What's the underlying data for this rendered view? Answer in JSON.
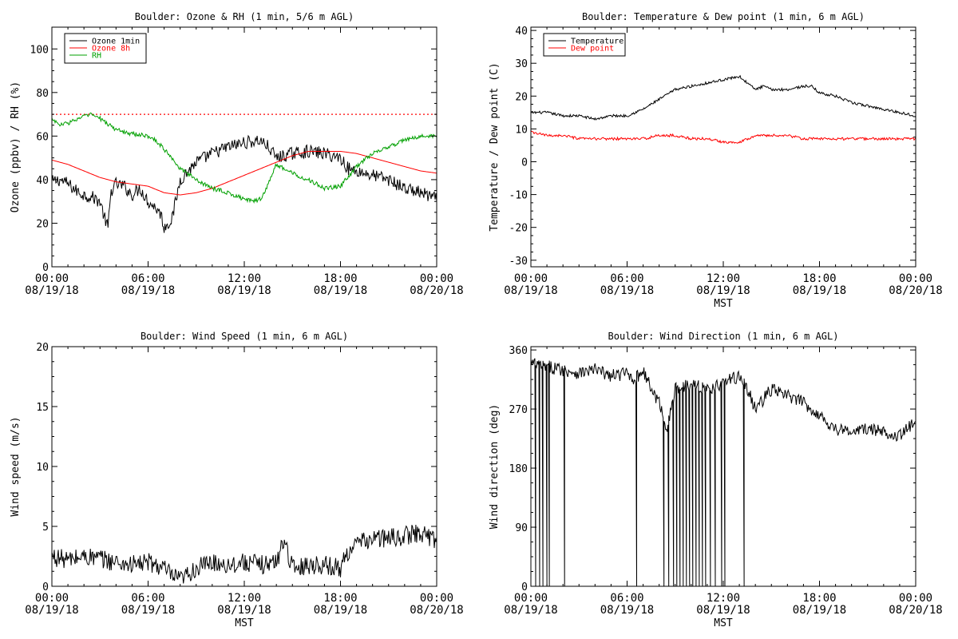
{
  "chart_data": [
    {
      "type": "line",
      "title": "Boulder: Ozone & RH (1 min, 5/6 m AGL)",
      "xlabel": "",
      "ylabel": "Ozone (ppbv) / RH (%)",
      "ylim": [
        0,
        110
      ],
      "yticks": [
        0,
        20,
        40,
        60,
        80,
        100
      ],
      "xlim": [
        0,
        24
      ],
      "xticks": [
        0,
        6,
        12,
        18,
        24
      ],
      "xtick_labels": [
        [
          "00:00",
          "08/19/18"
        ],
        [
          "06:00",
          "08/19/18"
        ],
        [
          "12:00",
          "08/19/18"
        ],
        [
          "18:00",
          "08/19/18"
        ],
        [
          "00:00",
          "08/20/18"
        ]
      ],
      "grid": false,
      "legend": "top-left",
      "reference_line": {
        "y": 70,
        "color": "#ff0000",
        "style": "dotted"
      },
      "series": [
        {
          "name": "Ozone 1min",
          "color": "#000000",
          "noise": 3,
          "x": [
            0,
            0.5,
            1,
            1.5,
            2,
            2.5,
            3,
            3.3,
            3.5,
            3.7,
            4,
            4.5,
            5,
            5.5,
            6,
            6.5,
            6.8,
            7,
            7.5,
            8,
            9,
            10,
            11,
            12,
            13,
            13.5,
            14,
            15,
            16,
            17,
            18,
            18.5,
            19,
            20,
            21,
            22,
            23,
            24
          ],
          "y": [
            39,
            40,
            38,
            35,
            33,
            32,
            30,
            22,
            18,
            35,
            38,
            37,
            33,
            36,
            30,
            27,
            24,
            18,
            22,
            40,
            48,
            52,
            55,
            57,
            58,
            55,
            50,
            52,
            53,
            52,
            50,
            45,
            44,
            42,
            40,
            36,
            34,
            31
          ]
        },
        {
          "name": "Ozone 8h",
          "color": "#ff0000",
          "noise": 0,
          "x": [
            0,
            1,
            2,
            3,
            4,
            5,
            6,
            7,
            8,
            9,
            10,
            11,
            12,
            13,
            14,
            15,
            16,
            17,
            18,
            19,
            20,
            21,
            22,
            23,
            24
          ],
          "y": [
            49,
            47,
            44,
            41,
            39,
            38,
            37,
            34,
            33,
            34,
            36,
            39,
            42,
            45,
            48,
            51,
            53,
            53,
            53,
            52,
            50,
            48,
            46,
            44,
            43
          ]
        },
        {
          "name": "RH",
          "color": "#00a000",
          "noise": 1,
          "x": [
            0,
            0.5,
            1,
            2,
            2.5,
            3,
            4,
            5,
            6,
            6.5,
            7,
            7.5,
            8,
            9,
            10,
            11,
            12,
            12.5,
            13,
            13.5,
            14,
            15,
            16,
            17,
            18,
            19,
            20,
            21,
            22,
            23,
            24
          ],
          "y": [
            68,
            65,
            66,
            69,
            70,
            68,
            63,
            61,
            60,
            58,
            54,
            50,
            45,
            40,
            36,
            34,
            31,
            30,
            31,
            38,
            47,
            43,
            40,
            36,
            37,
            46,
            52,
            55,
            58,
            60,
            60
          ]
        }
      ]
    },
    {
      "type": "line",
      "title": "Boulder: Temperature & Dew point (1 min, 6 m AGL)",
      "xlabel": "MST",
      "ylabel": "Temperature / Dew point (C)",
      "ylim": [
        -32,
        41
      ],
      "yticks": [
        -30,
        -20,
        -10,
        0,
        10,
        20,
        30,
        40
      ],
      "xlim": [
        0,
        24
      ],
      "xticks": [
        0,
        6,
        12,
        18,
        24
      ],
      "xtick_labels": [
        [
          "00:00",
          "08/19/18"
        ],
        [
          "06:00",
          "08/19/18"
        ],
        [
          "12:00",
          "08/19/18"
        ],
        [
          "18:00",
          "08/19/18"
        ],
        [
          "00:00",
          "08/20/18"
        ]
      ],
      "grid": false,
      "legend": "top-left",
      "series": [
        {
          "name": "Temperature",
          "color": "#000000",
          "noise": 0.4,
          "x": [
            0,
            1,
            2,
            3,
            4,
            5,
            6,
            7,
            8,
            9,
            10,
            11,
            12,
            13,
            13.5,
            14,
            14.5,
            15,
            16,
            17,
            17.5,
            18,
            19,
            20,
            21,
            22,
            23,
            24
          ],
          "y": [
            15,
            15,
            14,
            14,
            13,
            14,
            14,
            16,
            19,
            22,
            23,
            24,
            25,
            26,
            24,
            22,
            23,
            22,
            22,
            23,
            23,
            21,
            20,
            18,
            17,
            16,
            15,
            14
          ]
        },
        {
          "name": "Dew point",
          "color": "#ff0000",
          "noise": 0.4,
          "x": [
            0,
            1,
            2,
            3,
            4,
            5,
            6,
            7,
            8,
            9,
            10,
            11,
            12,
            13,
            14,
            15,
            16,
            17,
            18,
            19,
            20,
            21,
            22,
            23,
            24
          ],
          "y": [
            9,
            8,
            8,
            7,
            7,
            7,
            7,
            7,
            8,
            8,
            7,
            7,
            6,
            6,
            8,
            8,
            8,
            7,
            7,
            7,
            7,
            7,
            7,
            7,
            7
          ]
        }
      ]
    },
    {
      "type": "line",
      "title": "Boulder: Wind Speed (1 min, 6 m AGL)",
      "xlabel": "MST",
      "ylabel": "Wind speed (m/s)",
      "ylim": [
        0,
        20
      ],
      "yticks": [
        0,
        5,
        10,
        15,
        20
      ],
      "xlim": [
        0,
        24
      ],
      "xticks": [
        0,
        6,
        12,
        18,
        24
      ],
      "xtick_labels": [
        [
          "00:00",
          "08/19/18"
        ],
        [
          "06:00",
          "08/19/18"
        ],
        [
          "12:00",
          "08/19/18"
        ],
        [
          "18:00",
          "08/19/18"
        ],
        [
          "00:00",
          "08/20/18"
        ]
      ],
      "grid": false,
      "legend": "none",
      "series": [
        {
          "name": "Wind speed",
          "color": "#000000",
          "noise": 0.8,
          "x": [
            0,
            1,
            2,
            3,
            4,
            5,
            6,
            7,
            7.5,
            8,
            9,
            10,
            11,
            12,
            13,
            14,
            14.5,
            15,
            16,
            17,
            18,
            18.5,
            19,
            20,
            21,
            22,
            23,
            24
          ],
          "y": [
            2.5,
            2.2,
            2.5,
            2.3,
            2.0,
            1.8,
            2.0,
            1.5,
            0.8,
            0.5,
            1.5,
            2.0,
            1.8,
            2.0,
            1.8,
            2.0,
            4.0,
            1.5,
            1.8,
            1.8,
            1.5,
            3.0,
            3.5,
            4.0,
            4.0,
            4.2,
            4.5,
            3.8
          ]
        }
      ]
    },
    {
      "type": "line",
      "title": "Boulder: Wind Direction (1 min, 6 m AGL)",
      "xlabel": "MST",
      "ylabel": "Wind direction (deg)",
      "ylim": [
        0,
        365
      ],
      "yticks": [
        0,
        90,
        180,
        270,
        360
      ],
      "xlim": [
        0,
        24
      ],
      "xticks": [
        0,
        6,
        12,
        18,
        24
      ],
      "xtick_labels": [
        [
          "00:00",
          "08/19/18"
        ],
        [
          "06:00",
          "08/19/18"
        ],
        [
          "12:00",
          "08/19/18"
        ],
        [
          "18:00",
          "08/19/18"
        ],
        [
          "00:00",
          "08/20/18"
        ]
      ],
      "grid": false,
      "legend": "none",
      "series": [
        {
          "name": "Wind direction",
          "color": "#000000",
          "noise": 10,
          "x": [
            0,
            1,
            2,
            3,
            4,
            5,
            6,
            6.5,
            7,
            7.5,
            8,
            8.5,
            9,
            10,
            11,
            12,
            13,
            13.5,
            14,
            15,
            16,
            17,
            18,
            19,
            20,
            21,
            22,
            23,
            24
          ],
          "y": [
            340,
            335,
            330,
            325,
            330,
            320,
            325,
            315,
            330,
            300,
            280,
            240,
            300,
            310,
            300,
            310,
            320,
            300,
            270,
            300,
            290,
            280,
            260,
            240,
            235,
            240,
            235,
            230,
            250
          ]
        }
      ],
      "drops_to_zero_at": [
        0.3,
        0.55,
        0.75,
        1.0,
        1.15,
        2.1,
        6.6,
        8.3,
        8.6,
        8.9,
        9.1,
        9.3,
        9.5,
        9.7,
        9.9,
        10.1,
        10.3,
        10.5,
        10.7,
        10.9,
        11.2,
        11.5,
        11.9,
        12.1,
        13.3
      ]
    }
  ]
}
